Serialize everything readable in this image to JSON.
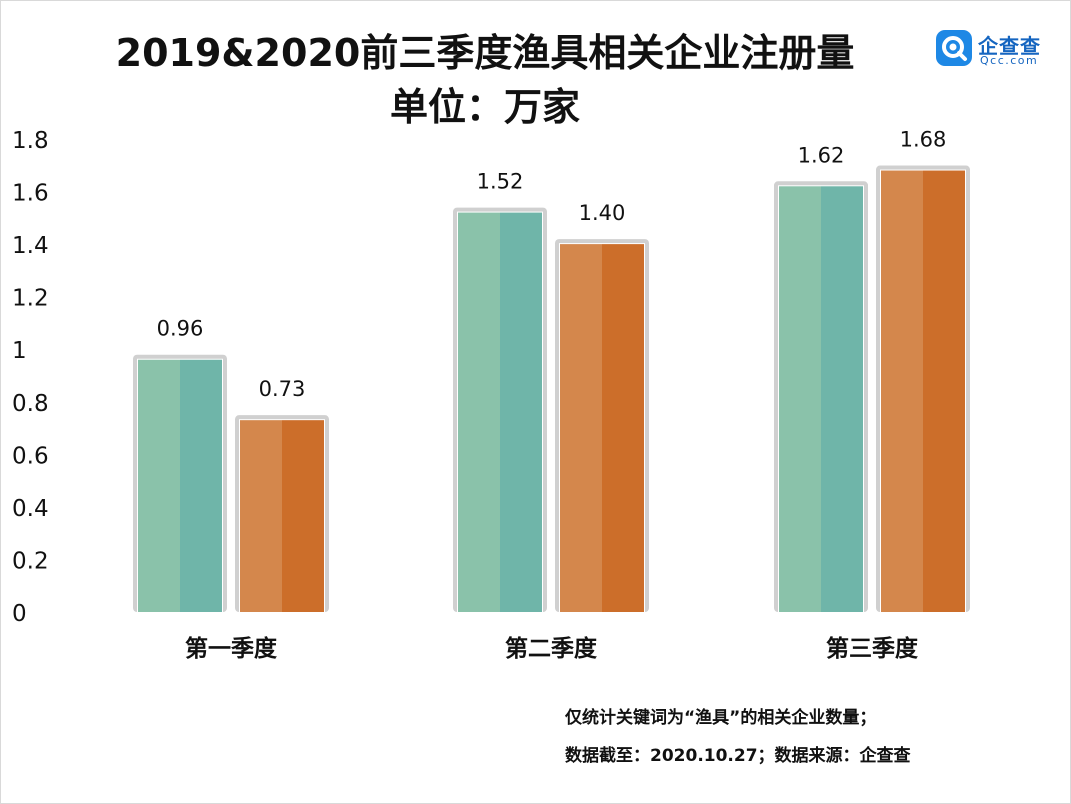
{
  "title_line1": "2019&2020前三季度渔具相关企业注册量",
  "title_line2": "单位：万家",
  "logo": {
    "name": "企查查",
    "url": "Qcc.com"
  },
  "notes": [
    "仅统计关键词为“渔具”的相关企业数量；",
    "数据截至：2020.10.27；数据来源：企查查"
  ],
  "colors": {
    "series_2019_light": "#8ac2aa",
    "series_2019_dark": "#6fb5a9",
    "series_2020_light": "#d4874c",
    "series_2020_dark": "#cc6e2a",
    "bar_shadow": "#d0d0d0"
  },
  "chart_data": {
    "type": "bar",
    "categories": [
      "第一季度",
      "第二季度",
      "第三季度"
    ],
    "series": [
      {
        "values": [
          0.96,
          1.52,
          1.62
        ]
      },
      {
        "values": [
          0.73,
          1.4,
          1.68
        ]
      }
    ],
    "value_labels": [
      [
        "0.96",
        "1.52",
        "1.62"
      ],
      [
        "0.73",
        "1.40",
        "1.68"
      ]
    ],
    "y_ticks": [
      "0",
      "0.2",
      "0.4",
      "0.6",
      "0.8",
      "1",
      "1.2",
      "1.4",
      "1.6",
      "1.8"
    ],
    "ylim": [
      0,
      1.8
    ],
    "grid": false,
    "legend": "none"
  }
}
